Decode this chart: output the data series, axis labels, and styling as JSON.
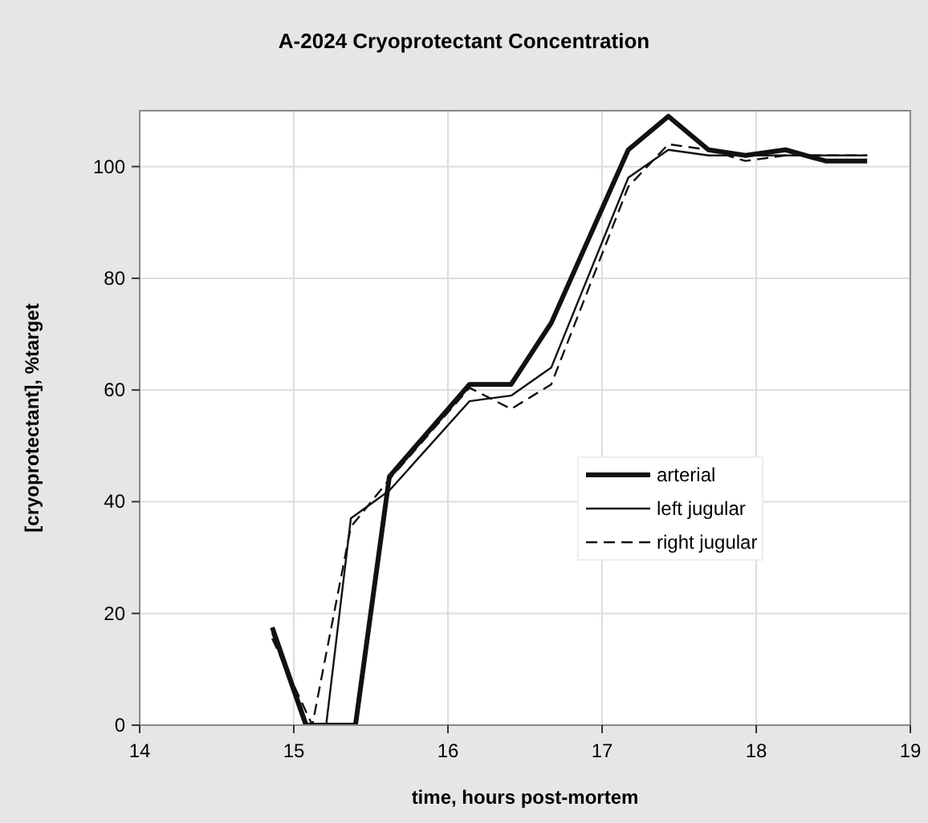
{
  "chart_data": {
    "type": "line",
    "title": "A-2024 Cryoprotectant Concentration",
    "xlabel": "time, hours post-mortem",
    "ylabel": "[cryoprotectant], %target",
    "xlim": [
      14,
      19
    ],
    "xticks": [
      14,
      15,
      16,
      17,
      18,
      19
    ],
    "ylim": [
      0,
      110
    ],
    "yticks": [
      0,
      20,
      40,
      60,
      80,
      100
    ],
    "grid": true,
    "legend": "right",
    "marker": "none",
    "series": [
      {
        "name": "arterial",
        "color": "#111111",
        "line_style": "solid",
        "x": [
          14.86,
          15.08,
          15.4,
          15.62,
          16.14,
          16.41,
          16.67,
          17.17,
          17.43,
          17.69,
          17.93,
          18.19,
          18.45,
          18.72
        ],
        "values": [
          17.5,
          0,
          0,
          44.5,
          61,
          61,
          72,
          103,
          109,
          103,
          102,
          103,
          101,
          101
        ]
      },
      {
        "name": "left jugular",
        "color": "#111111",
        "line_style": "solid",
        "x": [
          14.86,
          15.07,
          15.21,
          15.37,
          15.62,
          16.14,
          16.41,
          16.67,
          17.17,
          17.43,
          17.69,
          17.93,
          18.19,
          18.45,
          18.72
        ],
        "values": [
          16.5,
          0,
          0,
          37,
          42,
          58,
          59,
          64,
          98,
          103,
          102,
          102,
          102,
          102,
          102
        ]
      },
      {
        "name": "right jugular",
        "color": "#111111",
        "line_style": "dashed",
        "x": [
          14.86,
          15.12,
          15.37,
          15.62,
          16.14,
          16.41,
          16.67,
          17.17,
          17.43,
          17.69,
          17.93,
          18.19,
          18.45,
          18.72
        ],
        "values": [
          15.5,
          0,
          35.5,
          44,
          60.4,
          56.6,
          61,
          96.4,
          104,
          103,
          101,
          102,
          102,
          102
        ]
      }
    ]
  }
}
